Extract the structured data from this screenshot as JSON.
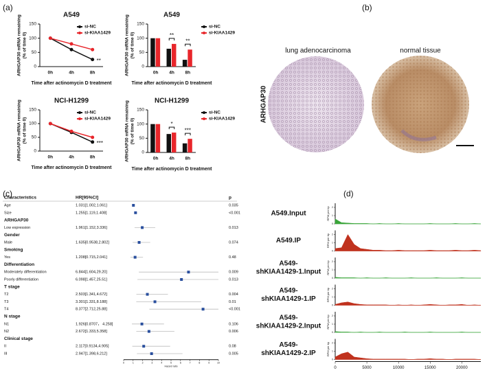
{
  "panel_labels": [
    "(a)",
    "(b)",
    "(c)",
    "(d)"
  ],
  "ihc": {
    "stain": "ARHGAP30",
    "left": "lung adenocarcinoma",
    "right": "normal tissue"
  },
  "chart_data": [
    {
      "type": "line",
      "title": "A549",
      "ylabel": [
        "ARHGAP30 mRNA remaining",
        "(% of time 0)"
      ],
      "xlabel": "Time after actinomycin D treatment",
      "categories": [
        "0h",
        "4h",
        "8h"
      ],
      "ylim": [
        0,
        150
      ],
      "yticks": [
        0,
        50,
        100,
        150
      ],
      "legend": "upper right",
      "series": [
        {
          "name": "si-NC",
          "color": "#111111",
          "values": [
            100,
            60,
            25
          ]
        },
        {
          "name": "si-KIAA1429",
          "color": "#e8262b",
          "values": [
            100,
            80,
            60
          ]
        }
      ],
      "annotations": [
        {
          "text": "**",
          "x": "8h"
        }
      ]
    },
    {
      "type": "bar",
      "title": "A549",
      "ylabel": [
        "ARHGAP30 mRNA remaining",
        "(% of time 0)"
      ],
      "xlabel": "Time after actinomycin D treatment",
      "categories": [
        "0h",
        "4h",
        "8h"
      ],
      "ylim": [
        0,
        150
      ],
      "yticks": [
        0,
        50,
        100,
        150
      ],
      "legend": "outside right",
      "series": [
        {
          "name": "si-NC",
          "color": "#111111",
          "values": [
            100,
            63,
            24
          ]
        },
        {
          "name": "si-KIAA1429",
          "color": "#e8262b",
          "values": [
            100,
            80,
            60
          ]
        }
      ],
      "annotations": [
        {
          "text": "**",
          "x": "4h"
        },
        {
          "text": "**",
          "x": "8h"
        }
      ]
    },
    {
      "type": "line",
      "title": "NCI-H1299",
      "ylabel": [
        "ARHGAP30 mRNA remaining",
        "(% of time 0)"
      ],
      "xlabel": "Time after actinomycin D treatment",
      "categories": [
        "0h",
        "4h",
        "8h"
      ],
      "ylim": [
        0,
        150
      ],
      "yticks": [
        0,
        50,
        100,
        150
      ],
      "legend": "upper right",
      "series": [
        {
          "name": "si-NC",
          "color": "#111111",
          "values": [
            100,
            68,
            33
          ]
        },
        {
          "name": "si-KIAA1429",
          "color": "#e8262b",
          "values": [
            100,
            72,
            50
          ]
        }
      ],
      "annotations": [
        {
          "text": "***",
          "x": "8h"
        }
      ]
    },
    {
      "type": "bar",
      "title": "NCI-H1299",
      "ylabel": [
        "ARHGAP30 mRNA remaining",
        "(% of time 0)"
      ],
      "xlabel": "Time after actinomycin D treatment",
      "categories": [
        "0h",
        "4h",
        "8h"
      ],
      "ylim": [
        0,
        150
      ],
      "yticks": [
        0,
        50,
        100,
        150
      ],
      "legend": "outside right",
      "series": [
        {
          "name": "si-NC",
          "color": "#111111",
          "values": [
            100,
            65,
            32
          ]
        },
        {
          "name": "si-KIAA1429",
          "color": "#e8262b",
          "values": [
            100,
            70,
            48
          ]
        }
      ],
      "annotations": [
        {
          "text": "*",
          "x": "4h"
        },
        {
          "text": "***",
          "x": "8h"
        }
      ]
    },
    {
      "type": "forest",
      "headers": [
        "Characteristics",
        "HR[95%CI]",
        "p"
      ],
      "xlabel": "Hazard ratio",
      "xlim": [
        0,
        10
      ],
      "xticks": [
        0,
        1,
        2,
        3,
        4,
        5,
        6,
        7,
        8,
        9,
        10
      ],
      "color": "#2a4f9e",
      "rows": [
        {
          "characteristic": "Age",
          "hr_label": "1.031[1.002,1.061]",
          "p": "0.035",
          "hr": 1.031,
          "ci_low": 1.002,
          "ci_high": 1.061
        },
        {
          "characteristic": "Size",
          "hr_label": "1.255[1.119,1.408]",
          "p": "<0.001",
          "hr": 1.255,
          "ci_low": 1.119,
          "ci_high": 1.408
        },
        {
          "characteristic": "ARHGAP30"
        },
        {
          "characteristic": "Low expression",
          "hr_label": "1.961[1.152,3.336]",
          "p": "0.013",
          "hr": 1.961,
          "ci_low": 1.152,
          "ci_high": 3.336
        },
        {
          "characteristic": "Gender"
        },
        {
          "characteristic": "Male",
          "hr_label": "1.635[0.9538,2.802]",
          "p": "0.074",
          "hr": 1.635,
          "ci_low": 0.9538,
          "ci_high": 2.802
        },
        {
          "characteristic": "Smoking"
        },
        {
          "characteristic": "Yes",
          "hr_label": "1.208[0.715,2.041]",
          "p": "0.48",
          "hr": 1.208,
          "ci_low": 0.715,
          "ci_high": 2.041
        },
        {
          "characteristic": "Differentiation"
        },
        {
          "characteristic": "Moderately differentiation",
          "hr_label": "6.844[1.604,29.20]",
          "p": "0.009",
          "hr": 6.844,
          "ci_low": 1.604,
          "ci_high": 29.2
        },
        {
          "characteristic": "Poorly differentiation",
          "hr_label": "6.098[1.457,25.51]",
          "p": "0.013",
          "hr": 6.098,
          "ci_low": 1.457,
          "ci_high": 25.51
        },
        {
          "characteristic": "T stage"
        },
        {
          "characteristic": "T2",
          "hr_label": "2.503[1.341,4.672]",
          "p": "0.004",
          "hr": 2.503,
          "ci_low": 1.341,
          "ci_high": 4.672
        },
        {
          "characteristic": "T3",
          "hr_label": "3.301[1.331,8.188]",
          "p": "0.01",
          "hr": 3.301,
          "ci_low": 1.331,
          "ci_high": 8.188
        },
        {
          "characteristic": "T4",
          "hr_label": "8.377[2.712,25.88]",
          "p": "<0.001",
          "hr": 8.377,
          "ci_low": 2.712,
          "ci_high": 25.88
        },
        {
          "characteristic": "N stage"
        },
        {
          "characteristic": "N1",
          "hr_label": "1.926[0.8707， 4.258]",
          "p": "0.106",
          "hr": 1.926,
          "ci_low": 0.8707,
          "ci_high": 4.258
        },
        {
          "characteristic": "N2",
          "hr_label": "2.672[1.333,5.358]",
          "p": "0.006",
          "hr": 2.672,
          "ci_low": 1.333,
          "ci_high": 5.358
        },
        {
          "characteristic": "Clinical stage"
        },
        {
          "characteristic": "II",
          "hr_label": "2.117[0.9134,4.905]",
          "p": "0.08",
          "hr": 2.117,
          "ci_low": 0.9134,
          "ci_high": 4.905
        },
        {
          "characteristic": "III",
          "hr_label": "2.947[1.398,6.212]",
          "p": "0.005",
          "hr": 2.947,
          "ci_low": 1.398,
          "ci_high": 6.212
        }
      ]
    },
    {
      "type": "tracks",
      "ylabel": "RPM per bp",
      "xlim": [
        0,
        23000
      ],
      "xticks": [
        0,
        5000,
        10000,
        15000,
        20000
      ],
      "ylim": [
        0,
        2.5
      ],
      "yticks": [
        0,
        1,
        2
      ],
      "x": [
        0,
        1000,
        2000,
        3000,
        4000,
        5000,
        6000,
        7000,
        8000,
        9000,
        10000,
        11000,
        12000,
        13000,
        14000,
        15000,
        16000,
        17000,
        18000,
        19000,
        20000,
        21000,
        22000,
        23000
      ],
      "series": [
        {
          "name": [
            "A549.Input"
          ],
          "color": "#3aa53a",
          "values": [
            0.6,
            0.15,
            0.1,
            0.05,
            0.05,
            0.05,
            0,
            0.05,
            0,
            0,
            0.05,
            0,
            0,
            0,
            0,
            0.05,
            0,
            0,
            0,
            0.05,
            0,
            0,
            0.05,
            0
          ]
        },
        {
          "name": [
            "A549.IP"
          ],
          "color": "#c0321e",
          "values": [
            0.3,
            0.4,
            2.0,
            0.8,
            0.3,
            0.2,
            0.1,
            0.1,
            0.05,
            0.05,
            0.1,
            0.05,
            0.05,
            0.05,
            0.05,
            0.1,
            0.05,
            0.05,
            0.05,
            0.1,
            0.05,
            0.05,
            0.1,
            0.05
          ]
        },
        {
          "name": [
            "A549-",
            "shKIAA1429-1.Input"
          ],
          "color": "#3aa53a",
          "values": [
            0.1,
            0.05,
            0.05,
            0.05,
            0,
            0.05,
            0,
            0,
            0.05,
            0,
            0,
            0,
            0.05,
            0,
            0,
            0,
            0.05,
            0,
            0,
            0,
            0.05,
            0,
            0,
            0
          ]
        },
        {
          "name": [
            "A549-",
            "shKIAA1429-1.IP"
          ],
          "color": "#c0321e",
          "values": [
            0.1,
            0.3,
            0.4,
            0.2,
            0.1,
            0.05,
            0.05,
            0.05,
            0.05,
            0,
            0.05,
            0,
            0.05,
            0,
            0.05,
            0.1,
            0.05,
            0,
            0.05,
            0.05,
            0.1,
            0,
            0.05,
            0
          ]
        },
        {
          "name": [
            "A549-",
            "shKIAA1429-2.Input"
          ],
          "color": "#3aa53a",
          "values": [
            0.1,
            0.05,
            0.05,
            0,
            0.05,
            0,
            0,
            0.05,
            0,
            0,
            0,
            0.05,
            0,
            0,
            0,
            0.05,
            0,
            0,
            0,
            0,
            0.05,
            0,
            0,
            0
          ]
        },
        {
          "name": [
            "A549-",
            "shKIAA1429-2.IP"
          ],
          "color": "#c0321e",
          "values": [
            0.3,
            0.7,
            0.9,
            0.3,
            0.2,
            0.1,
            0.05,
            0.05,
            0.05,
            0.05,
            0.05,
            0.05,
            0,
            0.05,
            0.05,
            0.1,
            0.05,
            0.05,
            0,
            0.05,
            0.05,
            0.05,
            0.05,
            0
          ]
        }
      ]
    }
  ]
}
